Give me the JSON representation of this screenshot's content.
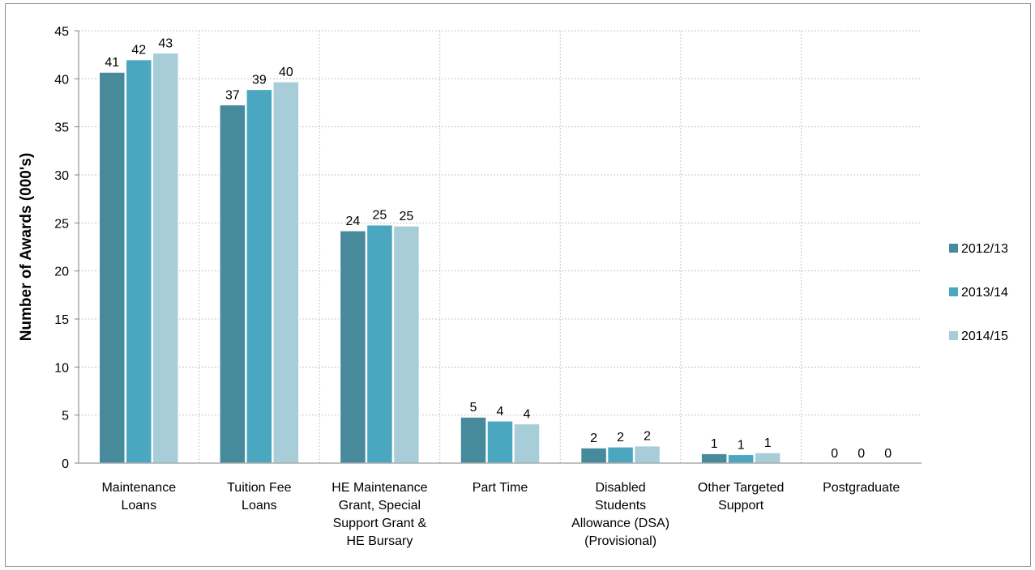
{
  "chart_data": {
    "type": "bar",
    "title": "",
    "xlabel": "",
    "ylabel": "Number  of  Awards (000's)",
    "ylim": [
      0,
      45
    ],
    "yticks": [
      0,
      5,
      10,
      15,
      20,
      25,
      30,
      35,
      40,
      45
    ],
    "grid": true,
    "legend_position": "right",
    "categories": [
      [
        "Maintenance",
        "Loans"
      ],
      [
        "Tuition Fee",
        "Loans"
      ],
      [
        "HE Maintenance",
        "Grant, Special",
        "Support Grant &",
        "HE Bursary"
      ],
      [
        "Part Time"
      ],
      [
        "Disabled",
        "Students",
        "Allowance (DSA)",
        "(Provisional)"
      ],
      [
        "Other Targeted",
        "Support"
      ],
      [
        "Postgraduate"
      ]
    ],
    "series": [
      {
        "name": "2012/13",
        "color": "#468a9c",
        "values": [
          40.7,
          37.3,
          24.2,
          4.8,
          1.6,
          1.0,
          0.0
        ],
        "labels": [
          "41",
          "37",
          "24",
          "5",
          "2",
          "1",
          "0"
        ]
      },
      {
        "name": "2013/14",
        "color": "#4ba6bf",
        "values": [
          42.0,
          38.9,
          24.8,
          4.4,
          1.7,
          0.9,
          0.0
        ],
        "labels": [
          "42",
          "39",
          "25",
          "4",
          "2",
          "1",
          "0"
        ]
      },
      {
        "name": "2014/15",
        "color": "#a7cdd8",
        "values": [
          42.7,
          39.7,
          24.7,
          4.1,
          1.8,
          1.1,
          0.0
        ],
        "labels": [
          "43",
          "40",
          "25",
          "4",
          "2",
          "1",
          "0"
        ]
      }
    ]
  }
}
